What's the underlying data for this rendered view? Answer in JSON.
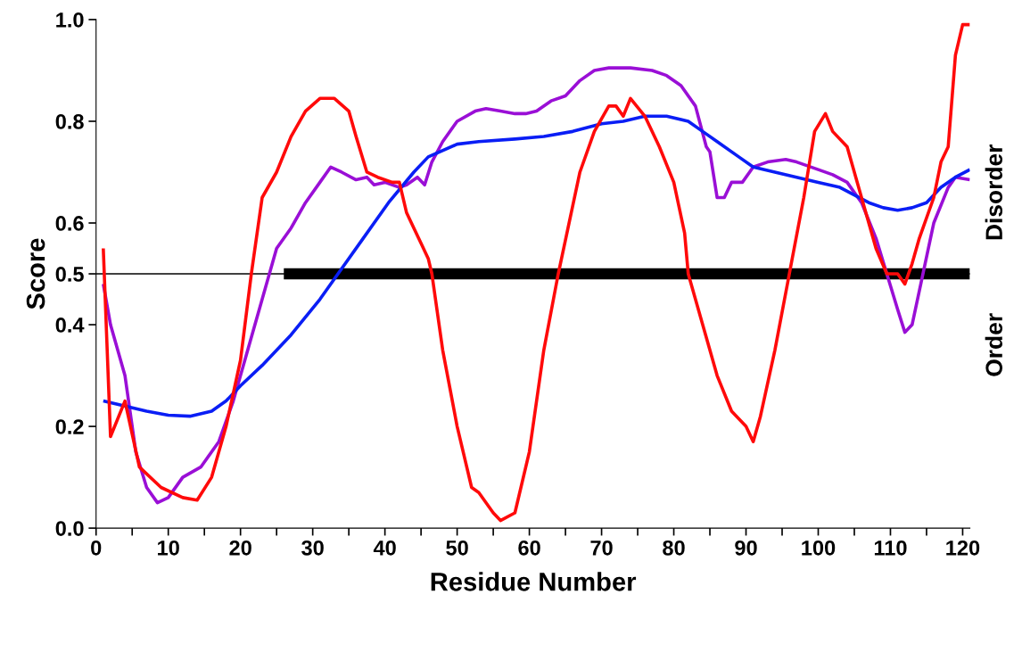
{
  "chart_data": {
    "type": "line",
    "xlabel": "Residue Number",
    "ylabel": "Score",
    "xlim": [
      0,
      121
    ],
    "ylim": [
      0,
      1
    ],
    "xticks": [
      0,
      {
        "value": 5,
        "label": null
      },
      10,
      {
        "value": 15,
        "label": null
      },
      20,
      {
        "value": 25,
        "label": null
      },
      30,
      {
        "value": 35,
        "label": null
      },
      40,
      {
        "value": 45,
        "label": null
      },
      50,
      {
        "value": 55,
        "label": null
      },
      60,
      {
        "value": 65,
        "label": null
      },
      70,
      {
        "value": 75,
        "label": null
      },
      80,
      {
        "value": 85,
        "label": null
      },
      90,
      {
        "value": 95,
        "label": null
      },
      100,
      {
        "value": 105,
        "label": null
      },
      110,
      {
        "value": 115,
        "label": null
      },
      120
    ],
    "yticks": [
      {
        "value": 0,
        "label": "0.0"
      },
      0.2,
      0.4,
      0.5,
      0.6,
      0.8,
      {
        "value": 1,
        "label": "1.0"
      }
    ],
    "grid": false,
    "marker": "none",
    "line_style": "solid",
    "ref_lines": [
      {
        "axis": "y",
        "value": 0.5,
        "label": null,
        "color": "#000000"
      }
    ],
    "annotations": [
      "Disorder",
      "Order"
    ],
    "series": [
      {
        "color": "#9a0fd6",
        "x": [
          1,
          2,
          4,
          5.5,
          7,
          8.5,
          10,
          12,
          14.5,
          17,
          19,
          21,
          23,
          25,
          27,
          29,
          31,
          32.5,
          34,
          36,
          37.5,
          38.5,
          40,
          42,
          43,
          44.5,
          45.5,
          46.5,
          48,
          50,
          52.5,
          54,
          56,
          58,
          59.5,
          61,
          63,
          65,
          67,
          69,
          71,
          74,
          77,
          79,
          81,
          83,
          84.5,
          85,
          86,
          87,
          88,
          89.5,
          91,
          93,
          95.5,
          97,
          100,
          102,
          104,
          106,
          108,
          109.5,
          111,
          112,
          113,
          114.5,
          116,
          118,
          119,
          121
        ],
        "values": [
          0.48,
          0.4,
          0.3,
          0.15,
          0.08,
          0.05,
          0.06,
          0.1,
          0.12,
          0.17,
          0.25,
          0.35,
          0.45,
          0.55,
          0.59,
          0.64,
          0.68,
          0.71,
          0.7,
          0.685,
          0.69,
          0.675,
          0.68,
          0.67,
          0.675,
          0.69,
          0.675,
          0.72,
          0.76,
          0.8,
          0.82,
          0.825,
          0.82,
          0.815,
          0.815,
          0.82,
          0.84,
          0.85,
          0.88,
          0.9,
          0.905,
          0.905,
          0.9,
          0.89,
          0.87,
          0.83,
          0.75,
          0.74,
          0.65,
          0.65,
          0.68,
          0.68,
          0.71,
          0.72,
          0.725,
          0.72,
          0.705,
          0.695,
          0.68,
          0.64,
          0.57,
          0.5,
          0.43,
          0.385,
          0.4,
          0.5,
          0.6,
          0.67,
          0.69,
          0.685
        ]
      },
      {
        "color": "#0a1ef5",
        "x": [
          1,
          4,
          7,
          10,
          13,
          16,
          18,
          20,
          23,
          27,
          31,
          33.5,
          37,
          40.5,
          44,
          46,
          50,
          53,
          58,
          62,
          66,
          70,
          73,
          76,
          79,
          82,
          84,
          86,
          89,
          91,
          94,
          97,
          100,
          103,
          105,
          107,
          109,
          111,
          113,
          115,
          117,
          119,
          121
        ],
        "values": [
          0.25,
          0.24,
          0.23,
          0.222,
          0.22,
          0.23,
          0.25,
          0.28,
          0.32,
          0.38,
          0.45,
          0.5,
          0.57,
          0.64,
          0.7,
          0.73,
          0.755,
          0.76,
          0.765,
          0.77,
          0.78,
          0.795,
          0.8,
          0.81,
          0.81,
          0.8,
          0.78,
          0.76,
          0.73,
          0.71,
          0.7,
          0.69,
          0.68,
          0.67,
          0.655,
          0.64,
          0.63,
          0.625,
          0.63,
          0.64,
          0.67,
          0.69,
          0.705
        ]
      },
      {
        "color": "#ff0a0a",
        "x": [
          1,
          2,
          4,
          6,
          9,
          12,
          14,
          16,
          18,
          20,
          21.5,
          23,
          25,
          27,
          29,
          31,
          33,
          35,
          36,
          37.5,
          39,
          41,
          42,
          43,
          45,
          46,
          46.5,
          48,
          50,
          52,
          53,
          55,
          56,
          58,
          60,
          62,
          64,
          67,
          69,
          71,
          72,
          73,
          74,
          76,
          78,
          80,
          81.5,
          82,
          84,
          86,
          88,
          90,
          91,
          92,
          94,
          96,
          98,
          99.5,
          101,
          102,
          104,
          106,
          108,
          109.5,
          111,
          112,
          113,
          114,
          116,
          117,
          118,
          119,
          120,
          121
        ],
        "values": [
          0.55,
          0.18,
          0.25,
          0.12,
          0.08,
          0.06,
          0.055,
          0.1,
          0.2,
          0.33,
          0.5,
          0.65,
          0.7,
          0.77,
          0.82,
          0.845,
          0.845,
          0.82,
          0.77,
          0.7,
          0.69,
          0.68,
          0.68,
          0.62,
          0.56,
          0.53,
          0.5,
          0.35,
          0.2,
          0.08,
          0.07,
          0.03,
          0.015,
          0.03,
          0.15,
          0.35,
          0.5,
          0.7,
          0.78,
          0.83,
          0.83,
          0.81,
          0.845,
          0.81,
          0.75,
          0.68,
          0.58,
          0.5,
          0.4,
          0.3,
          0.23,
          0.2,
          0.17,
          0.22,
          0.35,
          0.5,
          0.65,
          0.78,
          0.815,
          0.78,
          0.75,
          0.65,
          0.55,
          0.5,
          0.5,
          0.48,
          0.52,
          0.57,
          0.65,
          0.72,
          0.75,
          0.93,
          0.99,
          0.99
        ]
      },
      {
        "color": "#000000",
        "x": [
          26,
          121
        ],
        "values": [
          0.5,
          0.5
        ]
      }
    ]
  }
}
